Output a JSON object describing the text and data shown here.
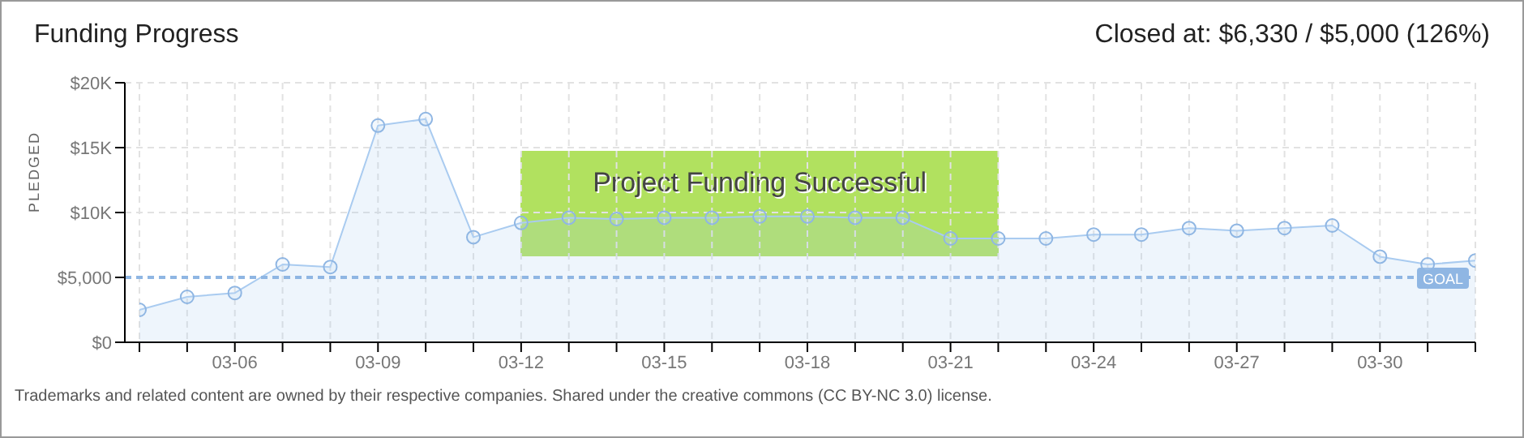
{
  "chart_data": {
    "type": "area",
    "title": "Funding Progress",
    "subtitle": "Closed at: $6,330 / $5,000 (126%)",
    "ylabel": "PLEDGED",
    "categories": [
      null,
      null,
      "03-06",
      null,
      null,
      "03-09",
      null,
      null,
      "03-12",
      null,
      null,
      "03-15",
      null,
      null,
      "03-18",
      null,
      null,
      "03-21",
      null,
      null,
      "03-24",
      null,
      null,
      "03-27",
      null,
      null,
      "03-30",
      null,
      null
    ],
    "series": [
      {
        "color": "#a9cbf0",
        "values": [
          2500,
          3500,
          3800,
          6000,
          5800,
          16700,
          17200,
          8100,
          9200,
          9600,
          9500,
          9600,
          9600,
          9700,
          9700,
          9600,
          9600,
          8000,
          8000,
          8000,
          8300,
          8300,
          8800,
          8600,
          8800,
          9000,
          6600,
          6000,
          6300
        ]
      }
    ],
    "ylim": [
      0,
      20000
    ],
    "yticks": [
      {
        "value": 0,
        "label": "$0"
      },
      {
        "value": 5000,
        "label": "$5,000"
      },
      {
        "value": 10000,
        "label": "$10K"
      },
      {
        "value": 15000,
        "label": "$15K"
      },
      {
        "value": 20000,
        "label": "$20K"
      }
    ],
    "ref_lines": [
      {
        "axis": "y",
        "value": 5000,
        "label": "GOAL",
        "color": "#8fb6e3",
        "line_style": "dashed"
      }
    ],
    "annotations": [
      "Project Funding Successful",
      "Trademarks and related content are owned by their respective companies. Shared under the creative commons (CC BY-NC 3.0) license."
    ],
    "grid": true,
    "marker": "circle",
    "line_style": "solid"
  }
}
